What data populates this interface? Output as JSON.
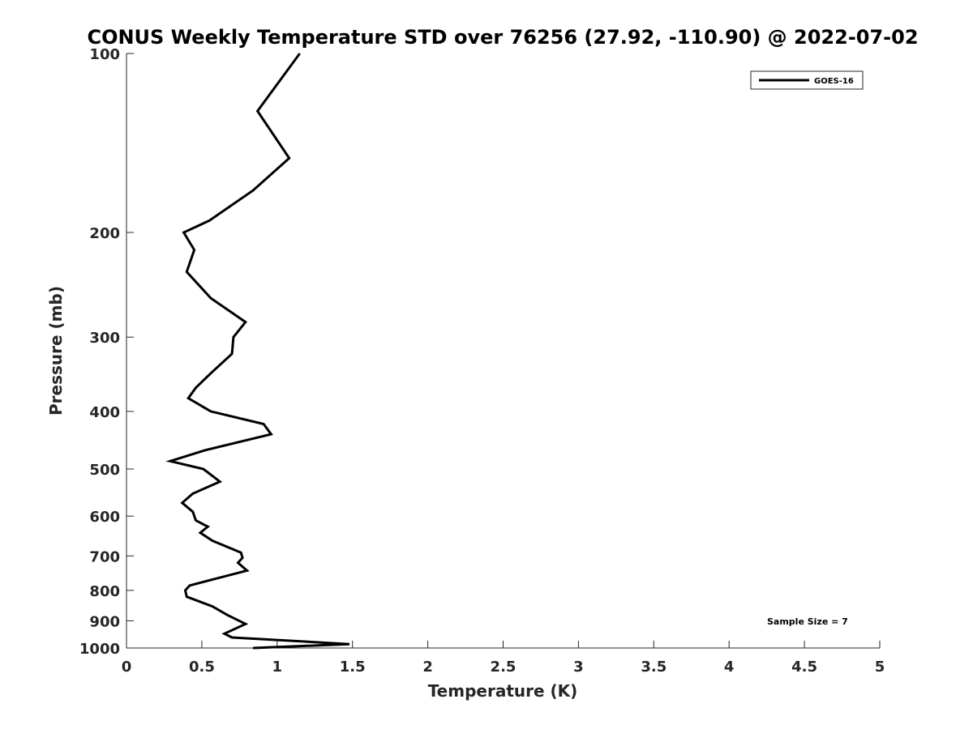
{
  "chart_data": {
    "type": "line",
    "title": "CONUS Weekly Temperature STD over 76256 (27.92, -110.90) @ 2022-07-02",
    "xlabel": "Temperature (K)",
    "ylabel": "Pressure (mb)",
    "xlim": [
      0,
      5
    ],
    "ylim": [
      100,
      1000
    ],
    "y_scale": "log",
    "y_reversed": true,
    "x_ticks": [
      "0",
      "0.5",
      "1",
      "1.5",
      "2",
      "2.5",
      "3",
      "3.5",
      "4",
      "4.5",
      "5"
    ],
    "y_ticks": [
      "100",
      "200",
      "300",
      "400",
      "500",
      "600",
      "700",
      "800",
      "900",
      "1000"
    ],
    "grid": false,
    "legend_position": "top-right",
    "annotation": "Sample Size = 7",
    "series": [
      {
        "name": "GOES-16",
        "color": "#000000",
        "points": [
          [
            1.15,
            100
          ],
          [
            0.87,
            125
          ],
          [
            1.08,
            150
          ],
          [
            0.84,
            170
          ],
          [
            0.55,
            191
          ],
          [
            0.38,
            200
          ],
          [
            0.45,
            214
          ],
          [
            0.4,
            233
          ],
          [
            0.56,
            258
          ],
          [
            0.79,
            283
          ],
          [
            0.71,
            300
          ],
          [
            0.7,
            320
          ],
          [
            0.56,
            345
          ],
          [
            0.46,
            365
          ],
          [
            0.41,
            380
          ],
          [
            0.56,
            400
          ],
          [
            0.91,
            420
          ],
          [
            0.96,
            437
          ],
          [
            0.52,
            465
          ],
          [
            0.29,
            485
          ],
          [
            0.51,
            500
          ],
          [
            0.62,
            525
          ],
          [
            0.44,
            550
          ],
          [
            0.37,
            570
          ],
          [
            0.44,
            590
          ],
          [
            0.46,
            610
          ],
          [
            0.54,
            625
          ],
          [
            0.49,
            640
          ],
          [
            0.57,
            660
          ],
          [
            0.76,
            691
          ],
          [
            0.77,
            705
          ],
          [
            0.74,
            719
          ],
          [
            0.8,
            741
          ],
          [
            0.42,
            785
          ],
          [
            0.39,
            800
          ],
          [
            0.4,
            820
          ],
          [
            0.57,
            851
          ],
          [
            0.67,
            880
          ],
          [
            0.79,
            911
          ],
          [
            0.65,
            946
          ],
          [
            0.7,
            960
          ],
          [
            1.48,
            985
          ],
          [
            0.84,
            1000
          ]
        ]
      }
    ]
  }
}
